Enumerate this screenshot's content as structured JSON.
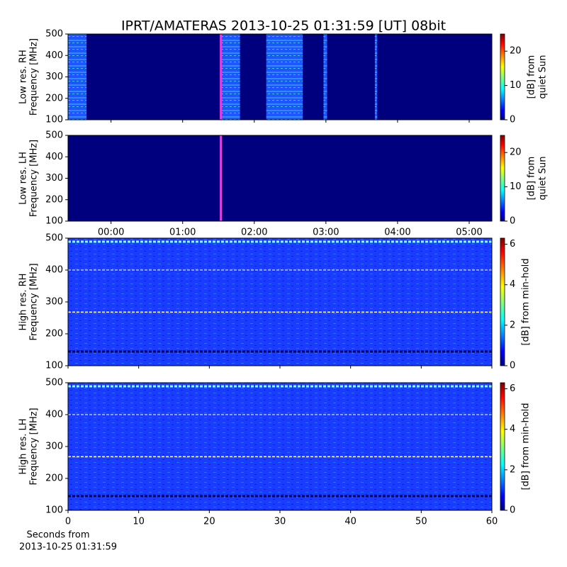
{
  "title": "IPRT/AMATERAS 2013-10-25 01:31:59 [UT]   08bit",
  "chart_data": [
    {
      "type": "heatmap",
      "ylabel": [
        "Low res. RH",
        "Frequency [MHz]"
      ],
      "xlim": [
        -36,
        319
      ],
      "ylim": [
        100,
        500
      ],
      "yticks": [
        100,
        200,
        300,
        400,
        500
      ],
      "segments": [
        [
          -36,
          -20.5
        ],
        [
          91.5,
          108
        ],
        [
          130,
          160.5
        ],
        [
          178,
          181
        ],
        [
          221,
          223
        ]
      ],
      "marker": 92,
      "clim": [
        0,
        25
      ],
      "cticks": [
        0,
        10,
        20
      ],
      "clabel": [
        "[dB] from",
        "quiet Sun"
      ]
    },
    {
      "type": "heatmap",
      "ylabel": [
        "Low res. LH",
        "Frequency [MHz]"
      ],
      "xlim": [
        -36,
        319
      ],
      "ylim": [
        100,
        500
      ],
      "yticks": [
        100,
        200,
        300,
        400,
        500
      ],
      "xticks": [
        {
          "value": 0,
          "label": "00:00"
        },
        {
          "value": 60,
          "label": "01:00"
        },
        {
          "value": 120,
          "label": "02:00"
        },
        {
          "value": 180,
          "label": "03:00"
        },
        {
          "value": 240,
          "label": "04:00"
        },
        {
          "value": 300,
          "label": "05:00"
        }
      ],
      "segments": [],
      "marker": 92,
      "clim": [
        0,
        25
      ],
      "cticks": [
        0,
        10,
        20
      ],
      "clabel": [
        "[dB] from",
        "quiet Sun"
      ]
    },
    {
      "type": "heatmap",
      "ylabel": [
        "High res. RH",
        "Frequency [MHz]"
      ],
      "xlim": [
        0,
        60
      ],
      "ylim": [
        100,
        500
      ],
      "yticks": [
        100,
        200,
        300,
        400,
        500
      ],
      "segments": [
        [
          0,
          60
        ]
      ],
      "clim": [
        0,
        6.3
      ],
      "cticks": [
        0,
        2,
        4,
        6
      ],
      "clabel": [
        "[dB] from min-hold"
      ]
    },
    {
      "type": "heatmap",
      "ylabel": [
        "High res. LH",
        "Frequency [MHz]"
      ],
      "xlim": [
        0,
        60
      ],
      "ylim": [
        100,
        500
      ],
      "yticks": [
        100,
        200,
        300,
        400,
        500
      ],
      "xticks": [
        0,
        10,
        20,
        30,
        40,
        50,
        60
      ],
      "xlabel": [
        "Seconds from",
        "2013-10-25 01:31:59"
      ],
      "segments": [
        [
          0,
          60
        ]
      ],
      "clim": [
        0,
        6.3
      ],
      "cticks": [
        0,
        2,
        4,
        6
      ],
      "clabel": [
        "[dB] from min-hold"
      ]
    }
  ]
}
